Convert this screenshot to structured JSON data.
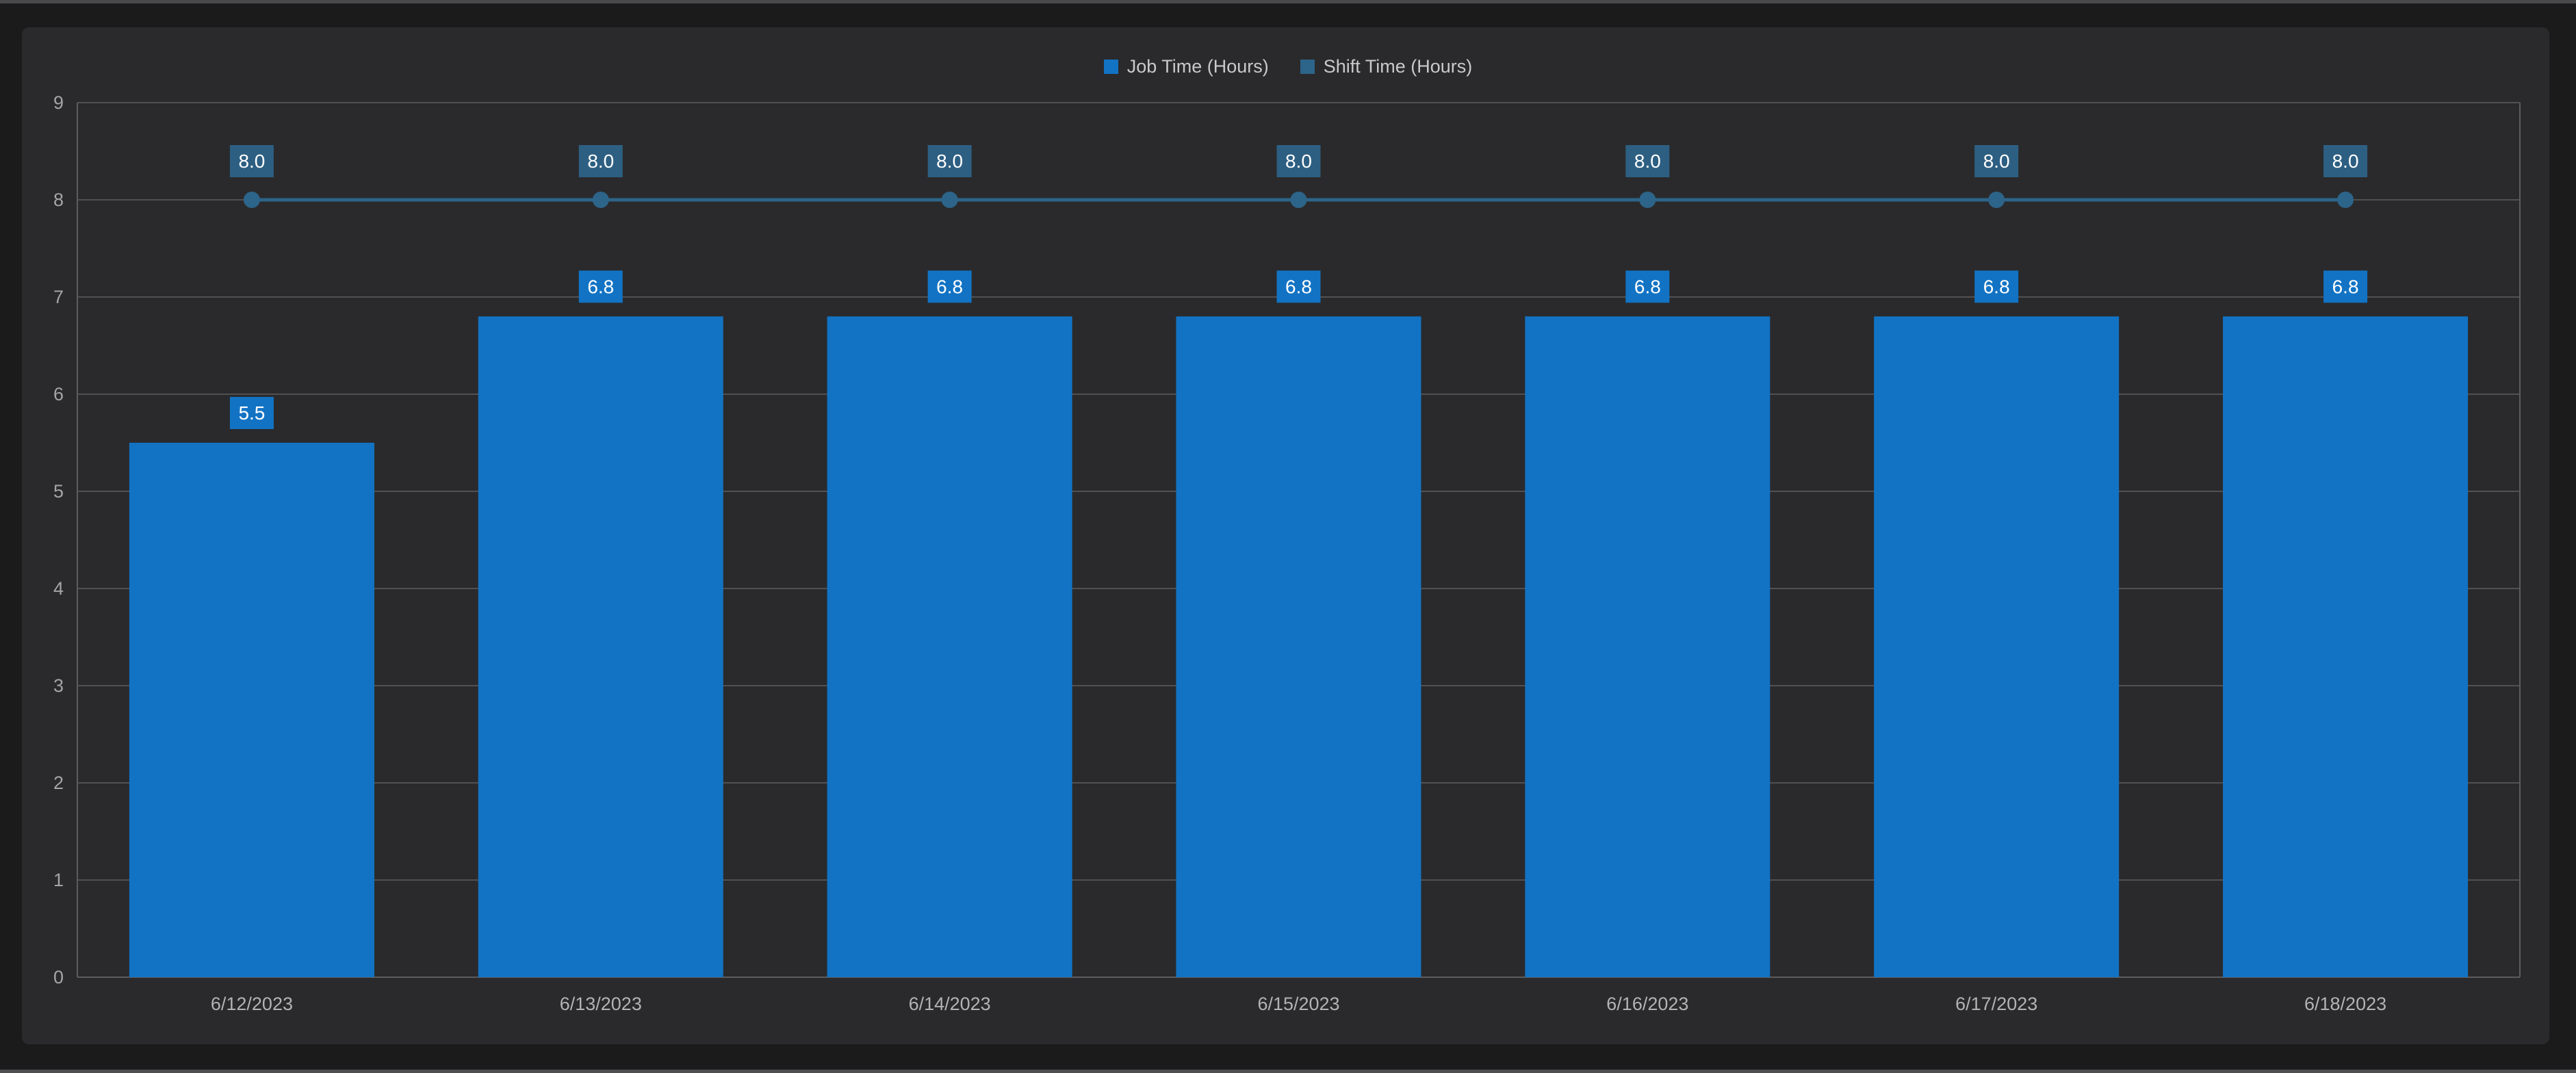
{
  "colors": {
    "outer_bg": "#1b1b1c",
    "panel_bg": "#2a2a2c",
    "edge_strip": "#4a4a4c",
    "gridline": "#515154",
    "axis": "#5c5c5e",
    "bar_blue": "#1273c4",
    "line_steel_blue": "#2d6489",
    "line_badge_blue": "#2d5f82",
    "tick_text": "#a5a5a7",
    "date_text": "#b3b3b5",
    "legend_text": "#c9c9cb",
    "badge_text": "#ffffff"
  },
  "legend": {
    "items": [
      {
        "label": "Job Time (Hours)",
        "color": "#1273c4"
      },
      {
        "label": "Shift Time (Hours)",
        "color": "#2d6489"
      }
    ]
  },
  "chart_data": {
    "type": "bar",
    "title": "",
    "xlabel": "",
    "ylabel": "",
    "categories": [
      "6/12/2023",
      "6/13/2023",
      "6/14/2023",
      "6/15/2023",
      "6/16/2023",
      "6/17/2023",
      "6/18/2023"
    ],
    "series": [
      {
        "name": "Job Time (Hours)",
        "type": "bar",
        "color": "#1273c4",
        "values": [
          5.5,
          6.8,
          6.8,
          6.8,
          6.8,
          6.8,
          6.8
        ],
        "labels": [
          "5.5",
          "6.8",
          "6.8",
          "6.8",
          "6.8",
          "6.8",
          "6.8"
        ]
      },
      {
        "name": "Shift Time (Hours)",
        "type": "line",
        "color": "#2d6489",
        "badge_color": "#2d5f82",
        "values": [
          8.0,
          8.0,
          8.0,
          8.0,
          8.0,
          8.0,
          8.0
        ],
        "labels": [
          "8.0",
          "8.0",
          "8.0",
          "8.0",
          "8.0",
          "8.0",
          "8.0"
        ]
      }
    ],
    "ylim": [
      0,
      9
    ],
    "yticks": [
      "0",
      "1",
      "2",
      "3",
      "4",
      "5",
      "6",
      "7",
      "8",
      "9"
    ],
    "grid": "horizontal",
    "legend_position": "top-center",
    "plot_border": "left-right-top-bottom"
  }
}
